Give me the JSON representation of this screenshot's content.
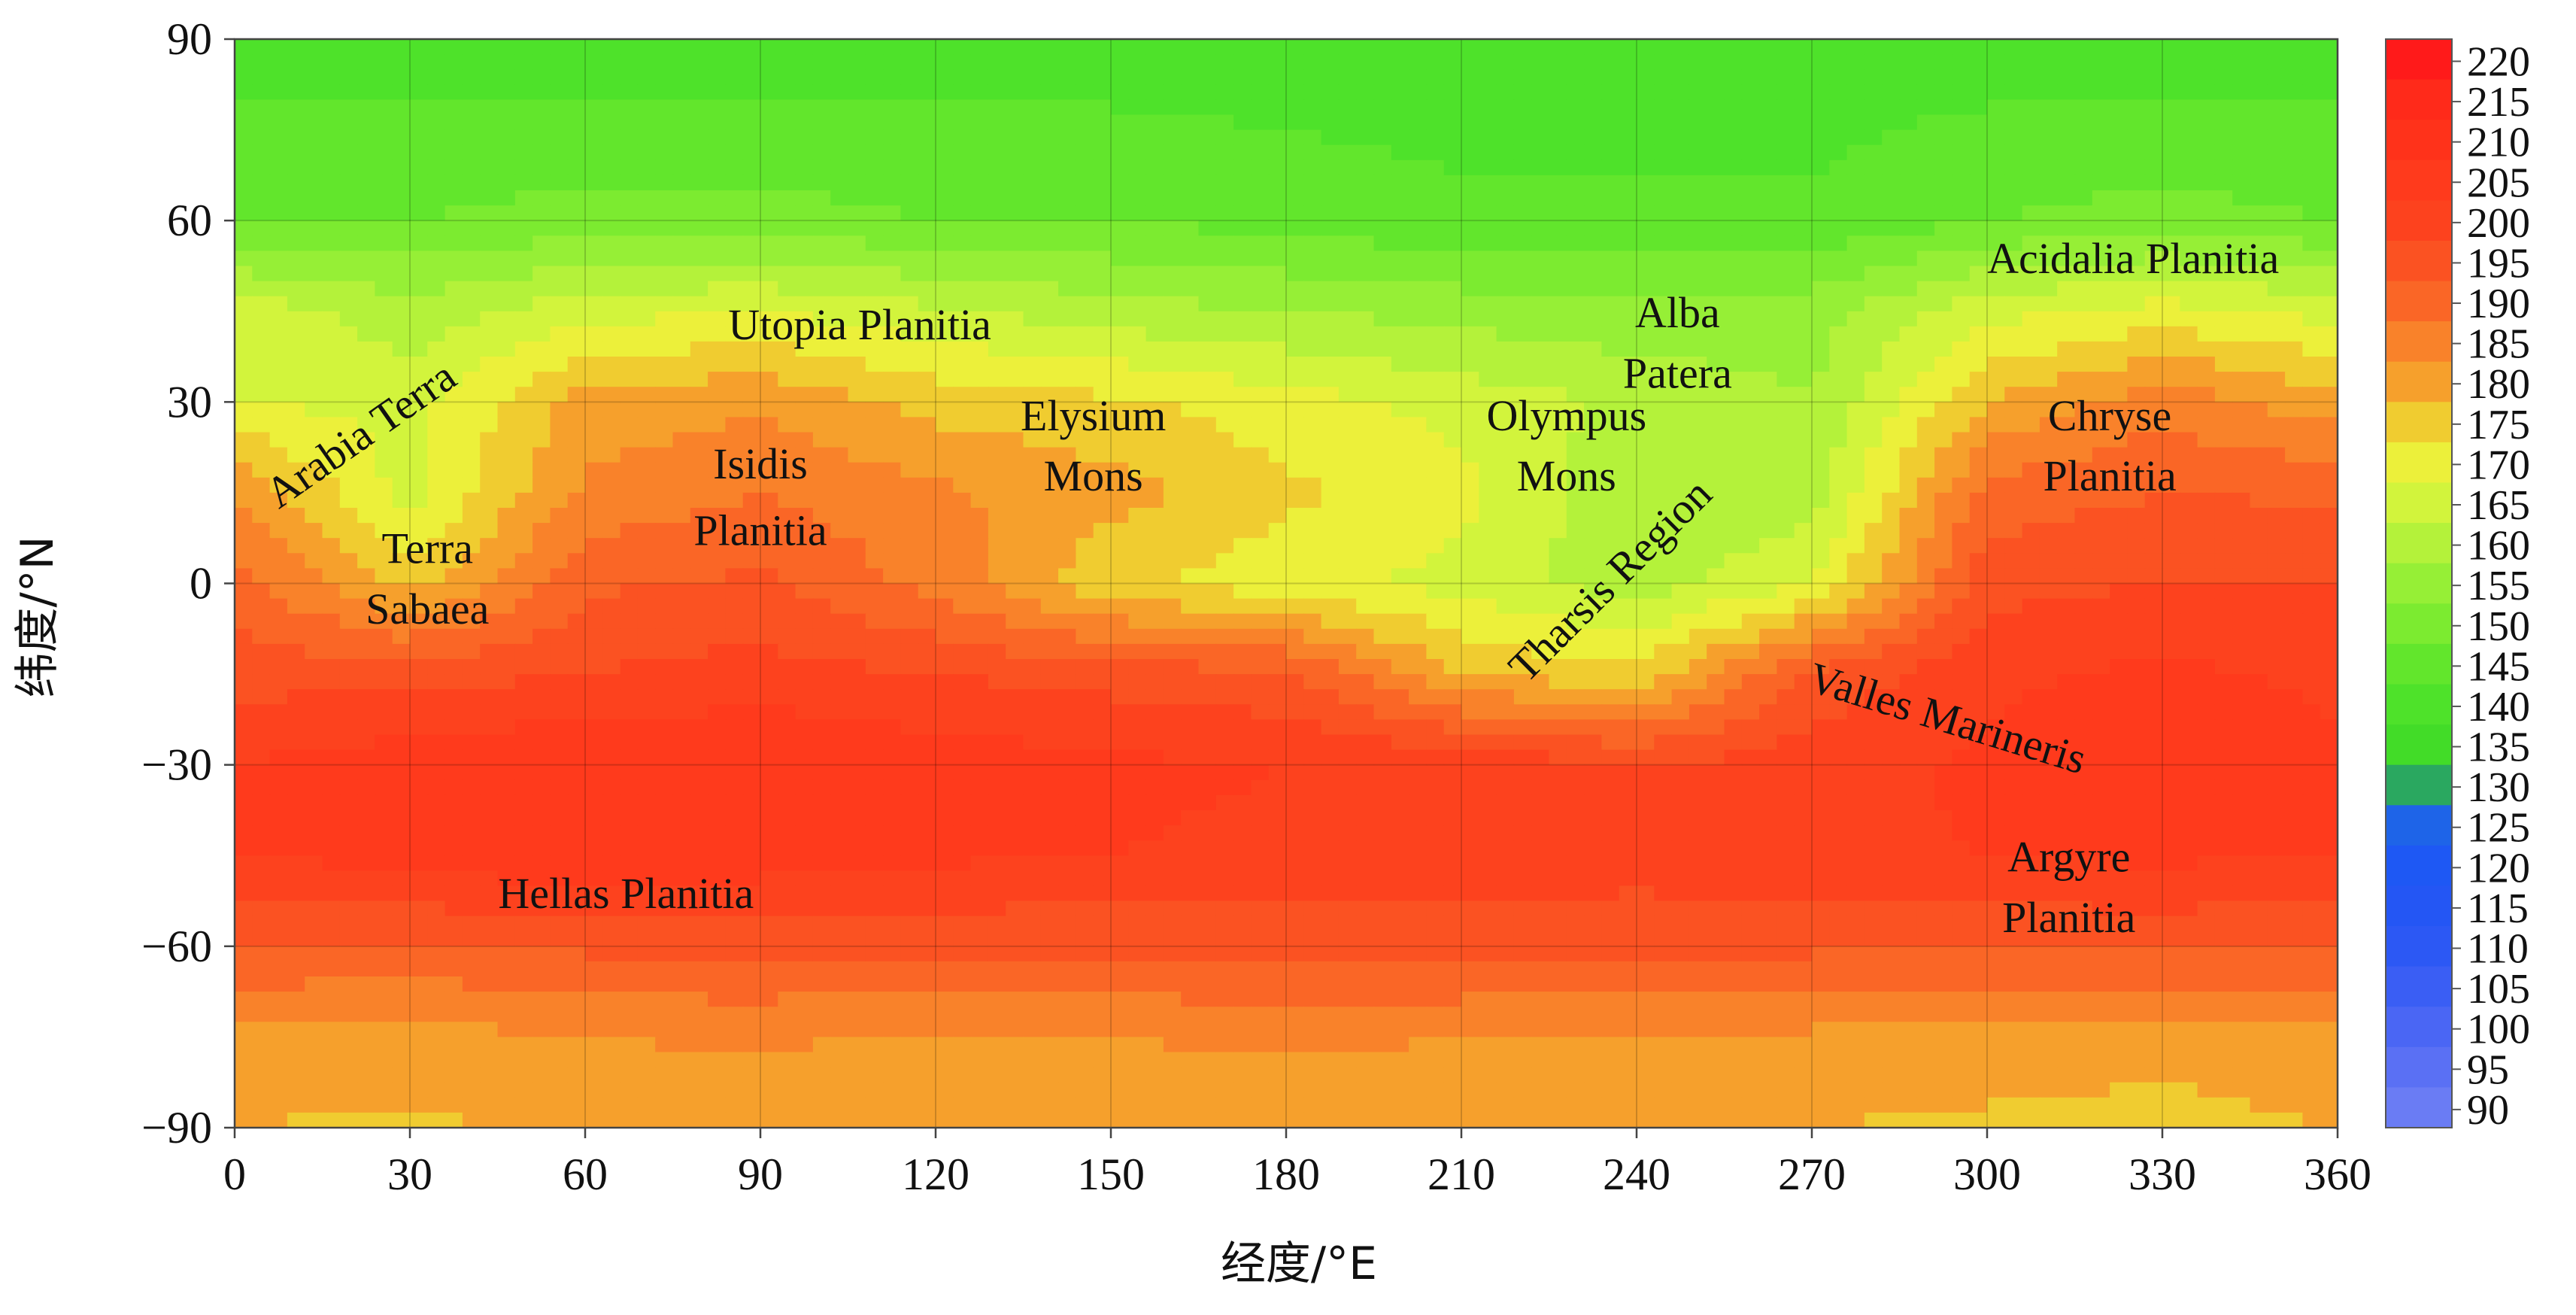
{
  "chart_data": {
    "type": "heatmap",
    "title": "",
    "xlabel": "经度/°E",
    "ylabel": "纬度/°N",
    "xlim": [
      0,
      360
    ],
    "ylim": [
      -90,
      90
    ],
    "x_ticks": [
      0,
      30,
      60,
      90,
      120,
      150,
      180,
      210,
      240,
      270,
      300,
      330,
      360
    ],
    "y_ticks": [
      90,
      60,
      30,
      0,
      -30,
      -60,
      -90
    ],
    "grid": true,
    "colorbar": {
      "placement": "right",
      "range": [
        90,
        220
      ],
      "step": 5,
      "tick_labels": [
        "220",
        "215",
        "210",
        "205",
        "200",
        "195",
        "190",
        "185",
        "180",
        "175",
        "170",
        "165",
        "160",
        "155",
        "150",
        "145",
        "140",
        "135",
        "130",
        "125",
        "120",
        "115",
        "110",
        "105",
        "100",
        "95",
        "90"
      ],
      "colors": {
        "220": "#ff1a1a",
        "215": "#ff2a1a",
        "210": "#ff321a",
        "205": "#ff3a1c",
        "200": "#fd421e",
        "195": "#fb5222",
        "190": "#fa6626",
        "185": "#f9822a",
        "180": "#f6a02c",
        "175": "#f0cc30",
        "170": "#ecf03a",
        "165": "#d2f43c",
        "160": "#b4f23a",
        "155": "#96ef36",
        "150": "#7ceb30",
        "145": "#62e62c",
        "140": "#4ee22a",
        "135": "#42dc28",
        "130": "#2aa860",
        "125": "#1e64e8",
        "120": "#1e58f4",
        "115": "#2456f4",
        "110": "#2c58f4",
        "105": "#3a5ef4",
        "100": "#4a66f4",
        "95": "#5a70f4",
        "90": "#6a7cf4"
      }
    },
    "grid_data": {
      "lon": [
        0,
        30,
        60,
        90,
        120,
        150,
        180,
        210,
        240,
        270,
        300,
        330,
        360
      ],
      "lat": [
        90,
        60,
        45,
        30,
        15,
        0,
        -15,
        -30,
        -45,
        -60,
        -75,
        -90
      ],
      "values": [
        [
          142,
          142,
          142,
          142,
          142,
          142,
          142,
          142,
          142,
          142,
          142,
          142,
          142
        ],
        [
          150,
          150,
          152,
          152,
          150,
          150,
          148,
          146,
          146,
          146,
          150,
          152,
          150
        ],
        [
          168,
          162,
          168,
          170,
          166,
          162,
          160,
          158,
          156,
          158,
          168,
          172,
          168
        ],
        [
          170,
          168,
          182,
          184,
          178,
          176,
          172,
          168,
          164,
          160,
          180,
          188,
          182
        ],
        [
          185,
          168,
          186,
          190,
          186,
          182,
          176,
          172,
          160,
          162,
          192,
          195,
          194
        ],
        [
          192,
          178,
          194,
          196,
          188,
          176,
          172,
          168,
          162,
          170,
          198,
          200,
          200
        ],
        [
          198,
          198,
          200,
          202,
          200,
          198,
          196,
          180,
          176,
          196,
          204,
          206,
          204
        ],
        [
          205,
          208,
          210,
          210,
          208,
          206,
          205,
          204,
          200,
          203,
          206,
          208,
          206
        ],
        [
          205,
          207,
          210,
          208,
          206,
          205,
          204,
          204,
          202,
          204,
          205,
          206,
          205
        ],
        [
          195,
          194,
          196,
          196,
          196,
          196,
          197,
          197,
          197,
          196,
          196,
          196,
          195
        ],
        [
          184,
          183,
          185,
          186,
          184,
          185,
          186,
          185,
          184,
          184,
          183,
          182,
          184
        ],
        [
          180,
          179,
          181,
          181,
          180,
          181,
          182,
          181,
          180,
          180,
          179,
          178,
          180
        ]
      ]
    },
    "annotations": [
      {
        "text": "Utopia Planitia",
        "lon": 107,
        "lat": 42
      },
      {
        "text": "Elysium",
        "lon": 147,
        "lat": 27
      },
      {
        "text": "Mons",
        "lon": 147,
        "lat": 17
      },
      {
        "text": "Isidis",
        "lon": 90,
        "lat": 19
      },
      {
        "text": "Planitia",
        "lon": 90,
        "lat": 8
      },
      {
        "text": "Terra",
        "lon": 33,
        "lat": 5
      },
      {
        "text": "Sabaea",
        "lon": 33,
        "lat": -5
      },
      {
        "text": "Alba",
        "lon": 247,
        "lat": 44
      },
      {
        "text": "Patera",
        "lon": 247,
        "lat": 34
      },
      {
        "text": "Olympus",
        "lon": 228,
        "lat": 27
      },
      {
        "text": "Mons",
        "lon": 228,
        "lat": 17
      },
      {
        "text": "Chryse",
        "lon": 321,
        "lat": 27
      },
      {
        "text": "Planitia",
        "lon": 321,
        "lat": 17
      },
      {
        "text": "Acidalia Planitia",
        "lon": 325,
        "lat": 53
      },
      {
        "text": "Hellas Planitia",
        "lon": 67,
        "lat": -52
      },
      {
        "text": "Argyre",
        "lon": 314,
        "lat": -46
      },
      {
        "text": "Planitia",
        "lon": 314,
        "lat": -56
      },
      {
        "text": "Arabia Terra",
        "lon": 22,
        "lat": 24,
        "rotate": -35
      },
      {
        "text": "Tharsis Region",
        "lon": 236,
        "lat": 0,
        "rotate": -45
      },
      {
        "text": "Valles Marineris",
        "lon": 293,
        "lat": -23,
        "rotate": 17
      }
    ]
  }
}
